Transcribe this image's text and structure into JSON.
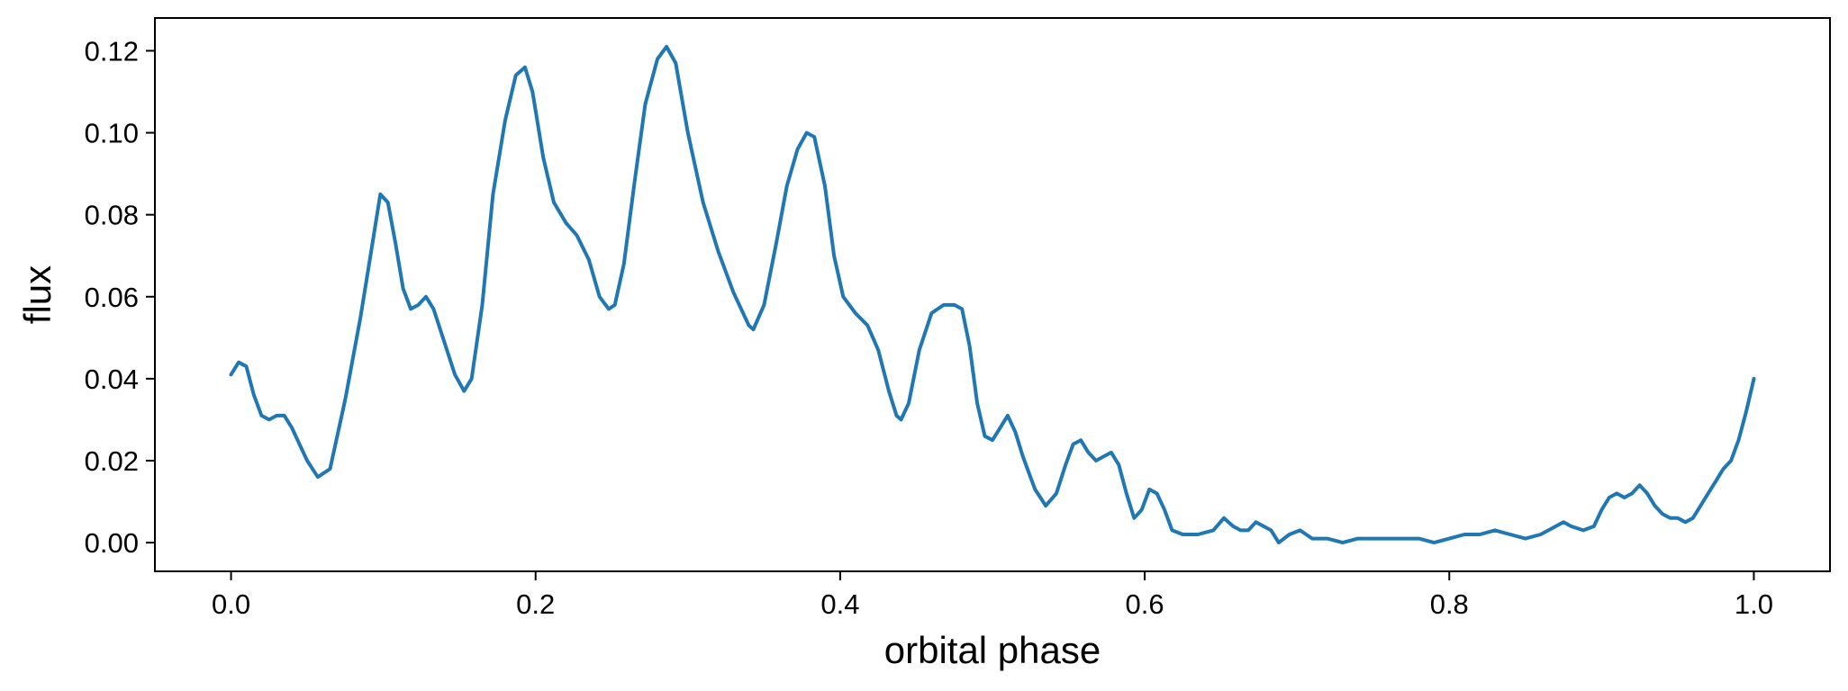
{
  "chart_data": {
    "type": "line",
    "title": "",
    "xlabel": "orbital phase",
    "ylabel": "flux",
    "xlim": [
      -0.05,
      1.05
    ],
    "ylim": [
      -0.007,
      0.128
    ],
    "xticks": [
      0.0,
      0.2,
      0.4,
      0.6,
      0.8,
      1.0
    ],
    "xtick_labels": [
      "0.0",
      "0.2",
      "0.4",
      "0.6",
      "0.8",
      "1.0"
    ],
    "yticks": [
      0.0,
      0.02,
      0.04,
      0.06,
      0.08,
      0.1,
      0.12
    ],
    "ytick_labels": [
      "0.00",
      "0.02",
      "0.04",
      "0.06",
      "0.08",
      "0.10",
      "0.12"
    ],
    "grid": false,
    "legend": "none",
    "series": [
      {
        "color": "#1f77b4",
        "x": [
          0.0,
          0.005,
          0.01,
          0.015,
          0.02,
          0.025,
          0.03,
          0.035,
          0.04,
          0.045,
          0.05,
          0.057,
          0.065,
          0.075,
          0.085,
          0.092,
          0.098,
          0.103,
          0.108,
          0.113,
          0.118,
          0.123,
          0.128,
          0.133,
          0.14,
          0.147,
          0.153,
          0.158,
          0.165,
          0.172,
          0.18,
          0.187,
          0.193,
          0.198,
          0.205,
          0.212,
          0.22,
          0.227,
          0.235,
          0.242,
          0.248,
          0.252,
          0.258,
          0.265,
          0.272,
          0.28,
          0.286,
          0.292,
          0.3,
          0.31,
          0.32,
          0.33,
          0.34,
          0.343,
          0.35,
          0.358,
          0.365,
          0.372,
          0.378,
          0.383,
          0.39,
          0.396,
          0.402,
          0.41,
          0.418,
          0.425,
          0.432,
          0.437,
          0.44,
          0.445,
          0.452,
          0.46,
          0.468,
          0.475,
          0.48,
          0.485,
          0.49,
          0.495,
          0.5,
          0.505,
          0.51,
          0.515,
          0.52,
          0.528,
          0.535,
          0.542,
          0.548,
          0.553,
          0.558,
          0.563,
          0.568,
          0.573,
          0.578,
          0.583,
          0.588,
          0.593,
          0.598,
          0.603,
          0.608,
          0.613,
          0.618,
          0.625,
          0.635,
          0.645,
          0.652,
          0.658,
          0.663,
          0.668,
          0.673,
          0.678,
          0.683,
          0.688,
          0.695,
          0.702,
          0.71,
          0.72,
          0.73,
          0.74,
          0.75,
          0.76,
          0.77,
          0.78,
          0.79,
          0.8,
          0.81,
          0.82,
          0.83,
          0.84,
          0.85,
          0.86,
          0.87,
          0.875,
          0.88,
          0.888,
          0.895,
          0.9,
          0.905,
          0.91,
          0.915,
          0.92,
          0.925,
          0.93,
          0.935,
          0.94,
          0.945,
          0.95,
          0.955,
          0.96,
          0.965,
          0.97,
          0.975,
          0.98,
          0.985,
          0.99,
          0.995,
          1.0
        ],
        "y": [
          0.041,
          0.044,
          0.043,
          0.036,
          0.031,
          0.03,
          0.031,
          0.031,
          0.028,
          0.024,
          0.02,
          0.016,
          0.018,
          0.035,
          0.055,
          0.071,
          0.085,
          0.083,
          0.073,
          0.062,
          0.057,
          0.058,
          0.06,
          0.057,
          0.049,
          0.041,
          0.037,
          0.04,
          0.058,
          0.085,
          0.103,
          0.114,
          0.116,
          0.11,
          0.094,
          0.083,
          0.078,
          0.075,
          0.069,
          0.06,
          0.057,
          0.058,
          0.068,
          0.088,
          0.107,
          0.118,
          0.121,
          0.117,
          0.1,
          0.083,
          0.071,
          0.061,
          0.053,
          0.052,
          0.058,
          0.073,
          0.087,
          0.096,
          0.1,
          0.099,
          0.087,
          0.07,
          0.06,
          0.056,
          0.053,
          0.047,
          0.037,
          0.031,
          0.03,
          0.034,
          0.047,
          0.056,
          0.058,
          0.058,
          0.057,
          0.048,
          0.034,
          0.026,
          0.025,
          0.028,
          0.031,
          0.027,
          0.021,
          0.013,
          0.009,
          0.012,
          0.019,
          0.024,
          0.025,
          0.022,
          0.02,
          0.021,
          0.022,
          0.019,
          0.012,
          0.006,
          0.008,
          0.013,
          0.012,
          0.008,
          0.003,
          0.002,
          0.002,
          0.003,
          0.006,
          0.004,
          0.003,
          0.003,
          0.005,
          0.004,
          0.003,
          0.0,
          0.002,
          0.003,
          0.001,
          0.001,
          0.0,
          0.001,
          0.001,
          0.001,
          0.001,
          0.001,
          0.0,
          0.001,
          0.002,
          0.002,
          0.003,
          0.002,
          0.001,
          0.002,
          0.004,
          0.005,
          0.004,
          0.003,
          0.004,
          0.008,
          0.011,
          0.012,
          0.011,
          0.012,
          0.014,
          0.012,
          0.009,
          0.007,
          0.006,
          0.006,
          0.005,
          0.006,
          0.009,
          0.012,
          0.015,
          0.018,
          0.02,
          0.025,
          0.032,
          0.04
        ]
      }
    ]
  }
}
